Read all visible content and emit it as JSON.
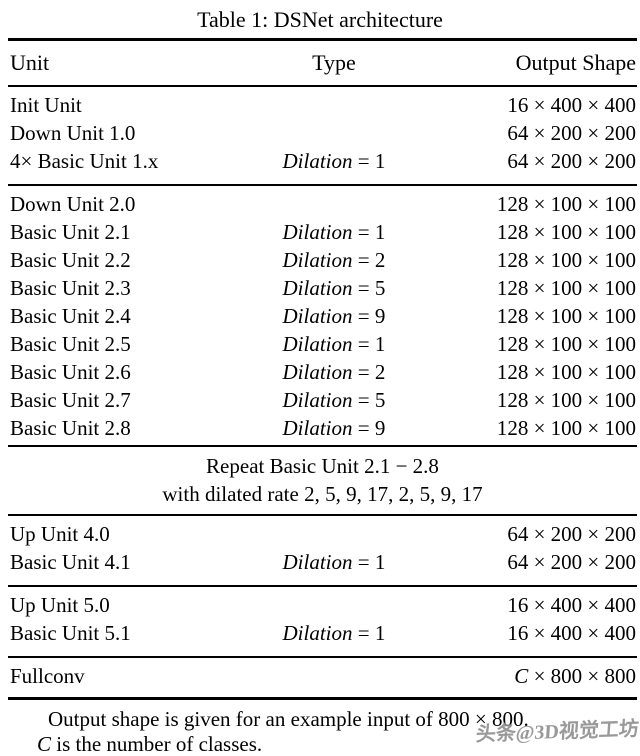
{
  "title": "Table 1: DSNet architecture",
  "table": {
    "headers": {
      "unit": "Unit",
      "type": "Type",
      "output": "Output Shape"
    },
    "sections": [
      {
        "rows": [
          {
            "unit": "Init Unit",
            "type_label": "",
            "type_value": "",
            "out_italic": "",
            "out_text": "16 × 400 × 400"
          },
          {
            "unit": "Down Unit 1.0",
            "type_label": "",
            "type_value": "",
            "out_italic": "",
            "out_text": "64 × 200 × 200"
          },
          {
            "unit": "4× Basic Unit 1.x",
            "type_label": "Dilation",
            "type_value": "= 1",
            "out_italic": "",
            "out_text": "64 × 200 × 200"
          }
        ]
      },
      {
        "rows": [
          {
            "unit": "Down Unit 2.0",
            "type_label": "",
            "type_value": "",
            "out_italic": "",
            "out_text": "128 × 100 × 100"
          },
          {
            "unit": "Basic Unit 2.1",
            "type_label": "Dilation",
            "type_value": "= 1",
            "out_italic": "",
            "out_text": "128 × 100 × 100"
          },
          {
            "unit": "Basic Unit 2.2",
            "type_label": "Dilation",
            "type_value": "= 2",
            "out_italic": "",
            "out_text": "128 × 100 × 100"
          },
          {
            "unit": "Basic Unit 2.3",
            "type_label": "Dilation",
            "type_value": "= 5",
            "out_italic": "",
            "out_text": "128 × 100 × 100"
          },
          {
            "unit": "Basic Unit 2.4",
            "type_label": "Dilation",
            "type_value": "= 9",
            "out_italic": "",
            "out_text": "128 × 100 × 100"
          },
          {
            "unit": "Basic Unit 2.5",
            "type_label": "Dilation",
            "type_value": "= 1",
            "out_italic": "",
            "out_text": "128 × 100 × 100"
          },
          {
            "unit": "Basic Unit 2.6",
            "type_label": "Dilation",
            "type_value": "= 2",
            "out_italic": "",
            "out_text": "128 × 100 × 100"
          },
          {
            "unit": "Basic Unit 2.7",
            "type_label": "Dilation",
            "type_value": "= 5",
            "out_italic": "",
            "out_text": "128 × 100 × 100"
          },
          {
            "unit": "Basic Unit 2.8",
            "type_label": "Dilation",
            "type_value": "= 9",
            "out_italic": "",
            "out_text": "128 × 100 × 100"
          }
        ]
      },
      {
        "rows": [
          {
            "unit": "Up Unit 4.0",
            "type_label": "",
            "type_value": "",
            "out_italic": "",
            "out_text": "64 × 200 × 200"
          },
          {
            "unit": "Basic Unit 4.1",
            "type_label": "Dilation",
            "type_value": "= 1",
            "out_italic": "",
            "out_text": "64 × 200 × 200"
          }
        ]
      },
      {
        "rows": [
          {
            "unit": "Up Unit 5.0",
            "type_label": "",
            "type_value": "",
            "out_italic": "",
            "out_text": "16 × 400 × 400"
          },
          {
            "unit": "Basic Unit 5.1",
            "type_label": "Dilation",
            "type_value": "= 1",
            "out_italic": "",
            "out_text": "16 × 400 × 400"
          }
        ]
      },
      {
        "rows": [
          {
            "unit": "Fullconv",
            "type_label": "",
            "type_value": "",
            "out_italic": "C",
            "out_text": " × 800 × 800"
          }
        ]
      }
    ],
    "repeat_note": {
      "line1": "Repeat Basic Unit 2.1 − 2.8",
      "line2": "with dilated rate 2, 5, 9, 17, 2, 5, 9, 17"
    }
  },
  "footnote": {
    "line1": "Output shape is given for an example input of 800 × 800.",
    "line2_italic": "C",
    "line2_text": " is the number of classes."
  },
  "watermark": "头条@3D视觉工坊",
  "colors": {
    "text": "#000000",
    "background": "#ffffff",
    "watermark": "#8f8f8f"
  }
}
